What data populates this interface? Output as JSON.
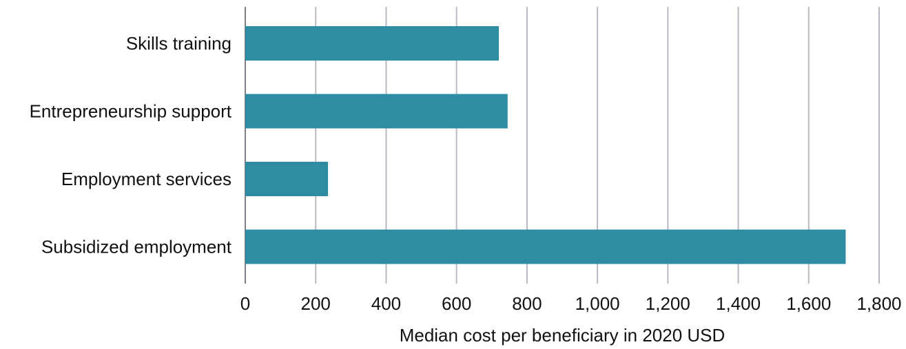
{
  "chart_data": {
    "type": "bar",
    "orientation": "horizontal",
    "categories": [
      "Skills training",
      "Entrepreneurship support",
      "Employment services",
      "Subsidized employment"
    ],
    "values": [
      720,
      745,
      235,
      1705
    ],
    "xlabel": "Median cost per beneficiary in 2020 USD",
    "xlim": [
      0,
      1800
    ],
    "xticks": [
      0,
      200,
      400,
      600,
      800,
      1000,
      1200,
      1400,
      1600,
      1800
    ],
    "xtick_labels": [
      "0",
      "200",
      "400",
      "600",
      "800",
      "1,000",
      "1,200",
      "1,400",
      "1,600",
      "1,800"
    ],
    "grid": "vertical",
    "bar_color": "#2e8ca3",
    "grid_color": "#b9b9c3"
  }
}
